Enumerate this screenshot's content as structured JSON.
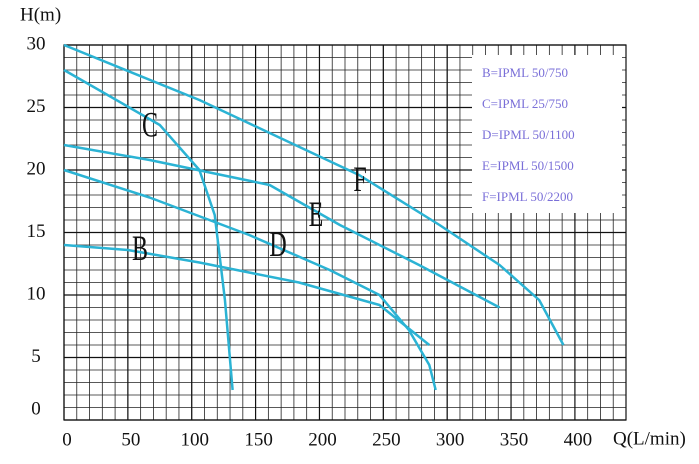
{
  "chart_data": {
    "type": "line",
    "x_label": "Q(L/min)",
    "y_label": "H(m)",
    "xlim": [
      0,
      440
    ],
    "xticks": [
      0,
      50,
      100,
      150,
      200,
      250,
      300,
      350,
      400
    ],
    "ylim": [
      0,
      30
    ],
    "yticks": [
      0,
      5,
      10,
      15,
      20,
      25,
      30
    ],
    "grid": true,
    "legend": "upper right",
    "series": [
      {
        "name": "B=IPML 50/750",
        "label": "B",
        "color": "#2bb3d4",
        "x": [
          0,
          50,
          106,
          184,
          247,
          286
        ],
        "values": [
          14,
          13.6,
          12.6,
          11,
          9.2,
          6
        ]
      },
      {
        "name": "C=IPML 25/750",
        "label": "C",
        "color": "#2bb3d4",
        "x": [
          0,
          75,
          106,
          118,
          126,
          132
        ],
        "values": [
          28,
          23.6,
          20,
          16.4,
          9.6,
          2.4
        ]
      },
      {
        "name": "D=IPML 50/1100",
        "label": "D",
        "color": "#2bb3d4",
        "x": [
          0,
          67,
          145,
          208,
          247,
          270,
          286,
          291
        ],
        "values": [
          20,
          17.8,
          14.8,
          12,
          10,
          7.2,
          4.4,
          2.4
        ]
      },
      {
        "name": "E=IPML 50/1500",
        "label": "E",
        "color": "#2bb3d4",
        "x": [
          0,
          67,
          161,
          216,
          278,
          341
        ],
        "values": [
          22,
          20.8,
          18.8,
          15.6,
          12.4,
          9
        ]
      },
      {
        "name": "F=IPML 50/2200",
        "label": "F",
        "color": "#2bb3d4",
        "x": [
          0,
          106,
          231,
          294,
          341,
          372,
          391
        ],
        "values": [
          30,
          25.6,
          19.6,
          15.6,
          12.4,
          9.6,
          6
        ]
      }
    ]
  }
}
